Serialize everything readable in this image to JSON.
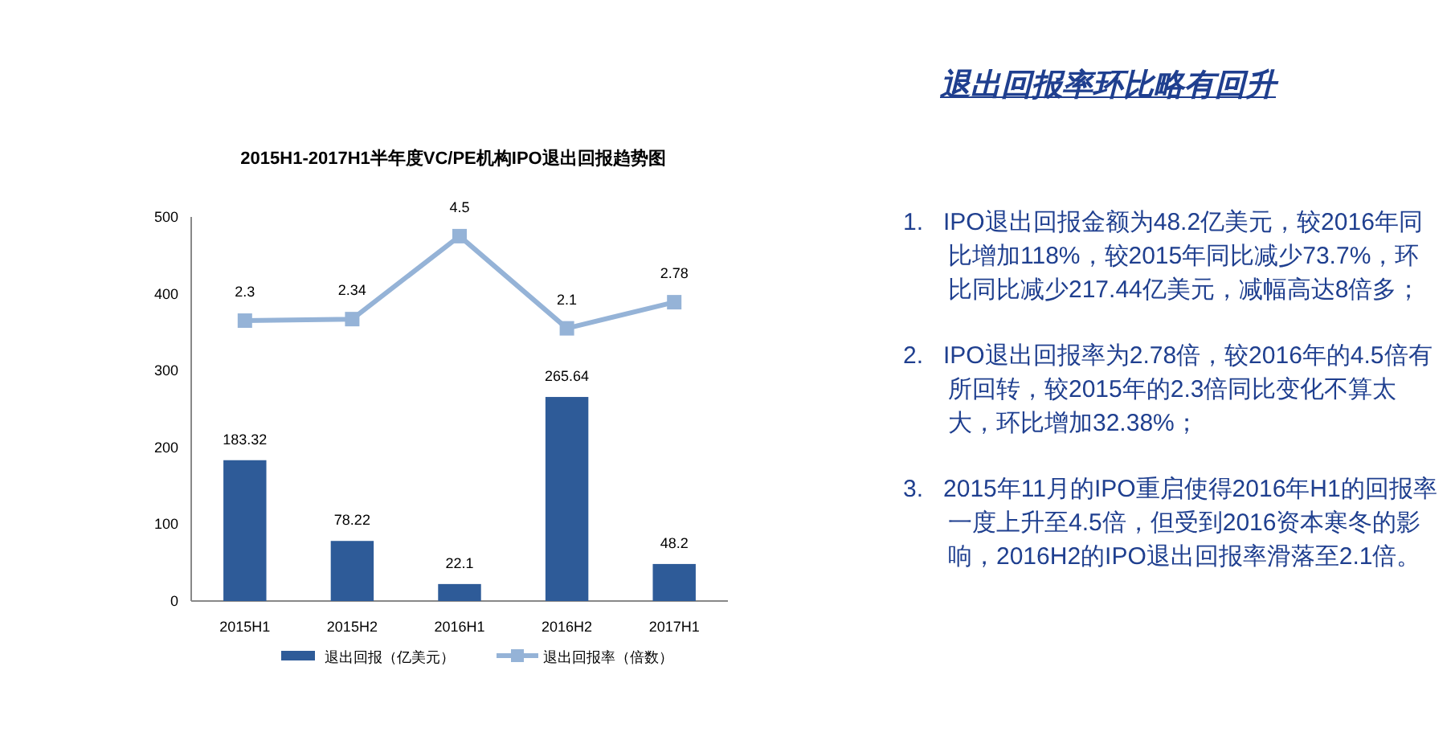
{
  "chart_data": [
    {
      "type": "bar",
      "title": "2015H1-2017H1半年度VC/PE机构IPO退出回报趋势图",
      "categories": [
        "2015H1",
        "2015H2",
        "2016H1",
        "2016H2",
        "2017H1"
      ],
      "series": [
        {
          "name": "退出回报（亿美元）",
          "color": "#2e5b98",
          "values": [
            183.32,
            78.22,
            22.1,
            265.64,
            48.2
          ]
        },
        {
          "name": "退出回报率（倍数）",
          "type": "line",
          "axis": "y2",
          "color": "#95b3d7",
          "marker": "square",
          "values": [
            2.3,
            2.34,
            4.5,
            2.1,
            2.78
          ]
        }
      ],
      "ylim": [
        0,
        500
      ],
      "yticks": [
        0,
        100,
        200,
        300,
        400,
        500
      ],
      "y2lim": [
        -5,
        5
      ],
      "data_labels": true,
      "grid": false,
      "legend": "bottom"
    },
    {
      "type": "other",
      "title": "退出回报率环比略有回升",
      "annotations": [
        "1.\tIPO退出回报金额为48.2亿美元，较2016年同比增加118%，较2015年同比减少73.7%，环比同比减少217.44亿美元，减幅高达8倍多；",
        "2.\tIPO退出回报率为2.78倍，较2016年的4.5倍有所回转，较2015年的2.3倍同比变化不算太大，环比增加32.38%；",
        "3.\t2015年11月的IPO重启使得2016年H1的回报率一度上升至4.5倍，但受到2016资本寒冬的影响，2016H2的IPO退出回报率滑落至2.1倍。"
      ]
    }
  ]
}
